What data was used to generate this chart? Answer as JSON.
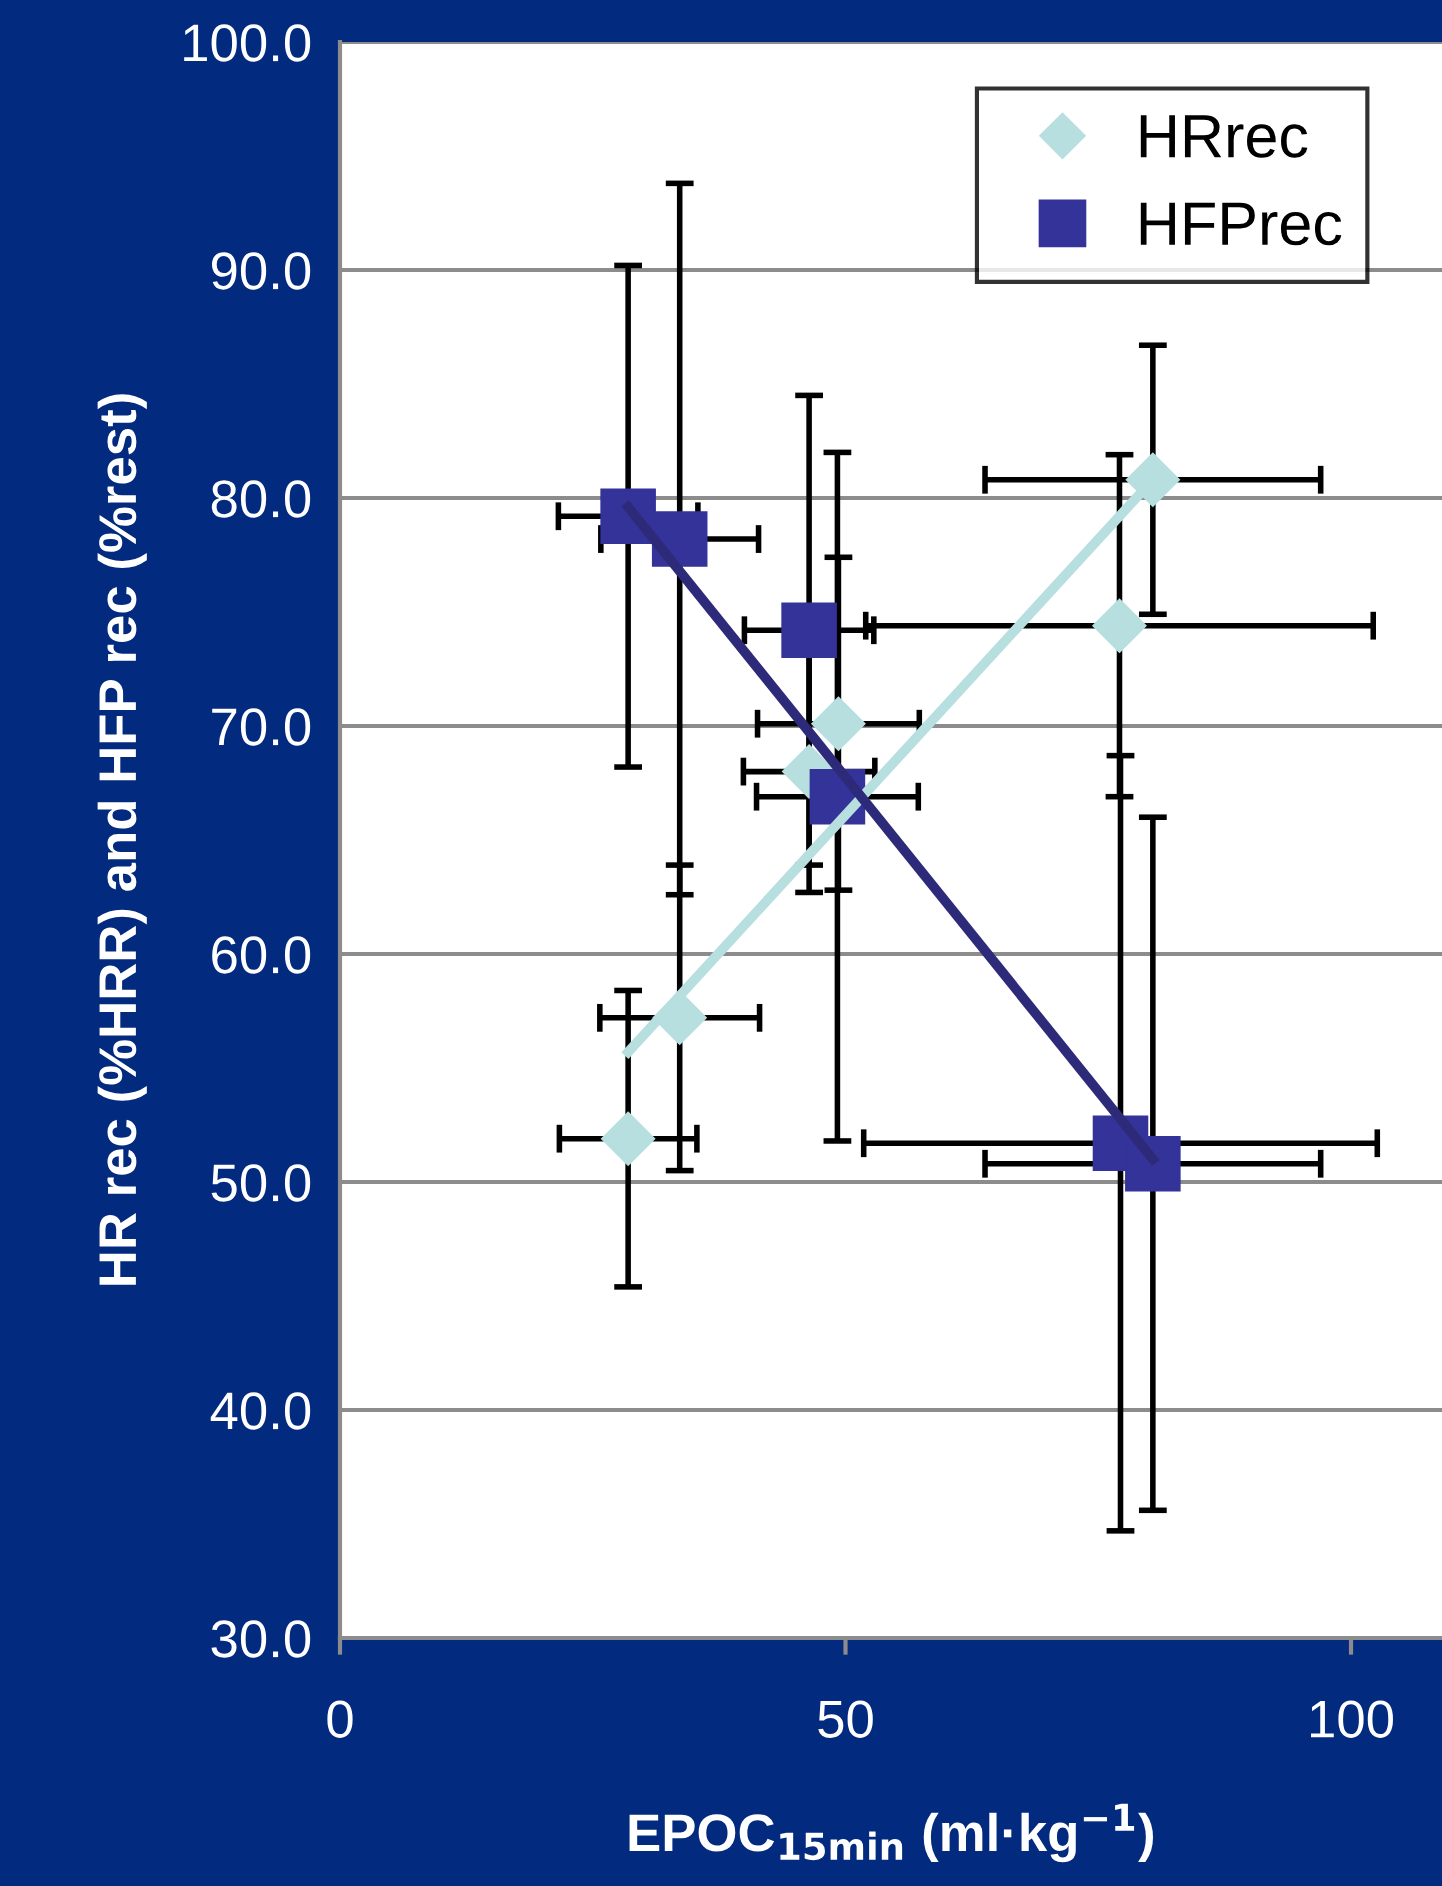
{
  "chart_data": {
    "type": "scatter",
    "xlabel": "EPOC$_{15min}$ (ml·kg$^{−1}$)",
    "ylabel": "HR rec (%HRR) and HFP rec (%rest)",
    "xlim": [
      0,
      109
    ],
    "xticks": [
      0,
      50,
      100
    ],
    "ylim": [
      30,
      100
    ],
    "yticks": [
      {
        "value": 30,
        "label": "30.0"
      },
      {
        "value": 40,
        "label": "40.0"
      },
      {
        "value": 50,
        "label": "50.0"
      },
      {
        "value": 60,
        "label": "60.0"
      },
      {
        "value": 70,
        "label": "70.0"
      },
      {
        "value": 80,
        "label": "80.0"
      },
      {
        "value": 90,
        "label": "90.0"
      },
      {
        "value": 100,
        "label": "100.0"
      }
    ],
    "grid": "y",
    "legend": "top right",
    "series": [
      {
        "name": "HRrec",
        "marker": "diamond",
        "color": "#b7dfe0",
        "x": [
          28.5,
          33.6,
          46.4,
          49.3,
          77.1,
          80.4
        ],
        "values": [
          51.9,
          57.2,
          68.0,
          70.1,
          74.4,
          80.8
        ],
        "errors": [
          6.5,
          6.7,
          5.3,
          7.3,
          7.5,
          5.9
        ],
        "xerrors": [
          6.8,
          7.9,
          6.5,
          8.0,
          25.1,
          16.6
        ]
      },
      {
        "name": "HFPrec",
        "marker": "square",
        "color": "#333399",
        "x": [
          28.5,
          33.6,
          46.4,
          49.2,
          77.2,
          80.4
        ],
        "values": [
          79.2,
          78.2,
          74.2,
          66.9,
          51.7,
          50.8
        ],
        "errors": [
          11.0,
          15.6,
          10.3,
          15.1,
          17.0,
          15.2
        ],
        "xerrors": [
          6.9,
          7.8,
          6.4,
          8.0,
          25.4,
          16.6
        ]
      },
      {
        "type": "line",
        "color": "#b7dfe0",
        "x": [
          28.5,
          80.4
        ],
        "values": [
          55.7,
          80.8
        ]
      },
      {
        "type": "line",
        "color": "#2e2a7a",
        "x": [
          28.5,
          80.4
        ],
        "values": [
          79.6,
          51.0
        ]
      }
    ]
  }
}
